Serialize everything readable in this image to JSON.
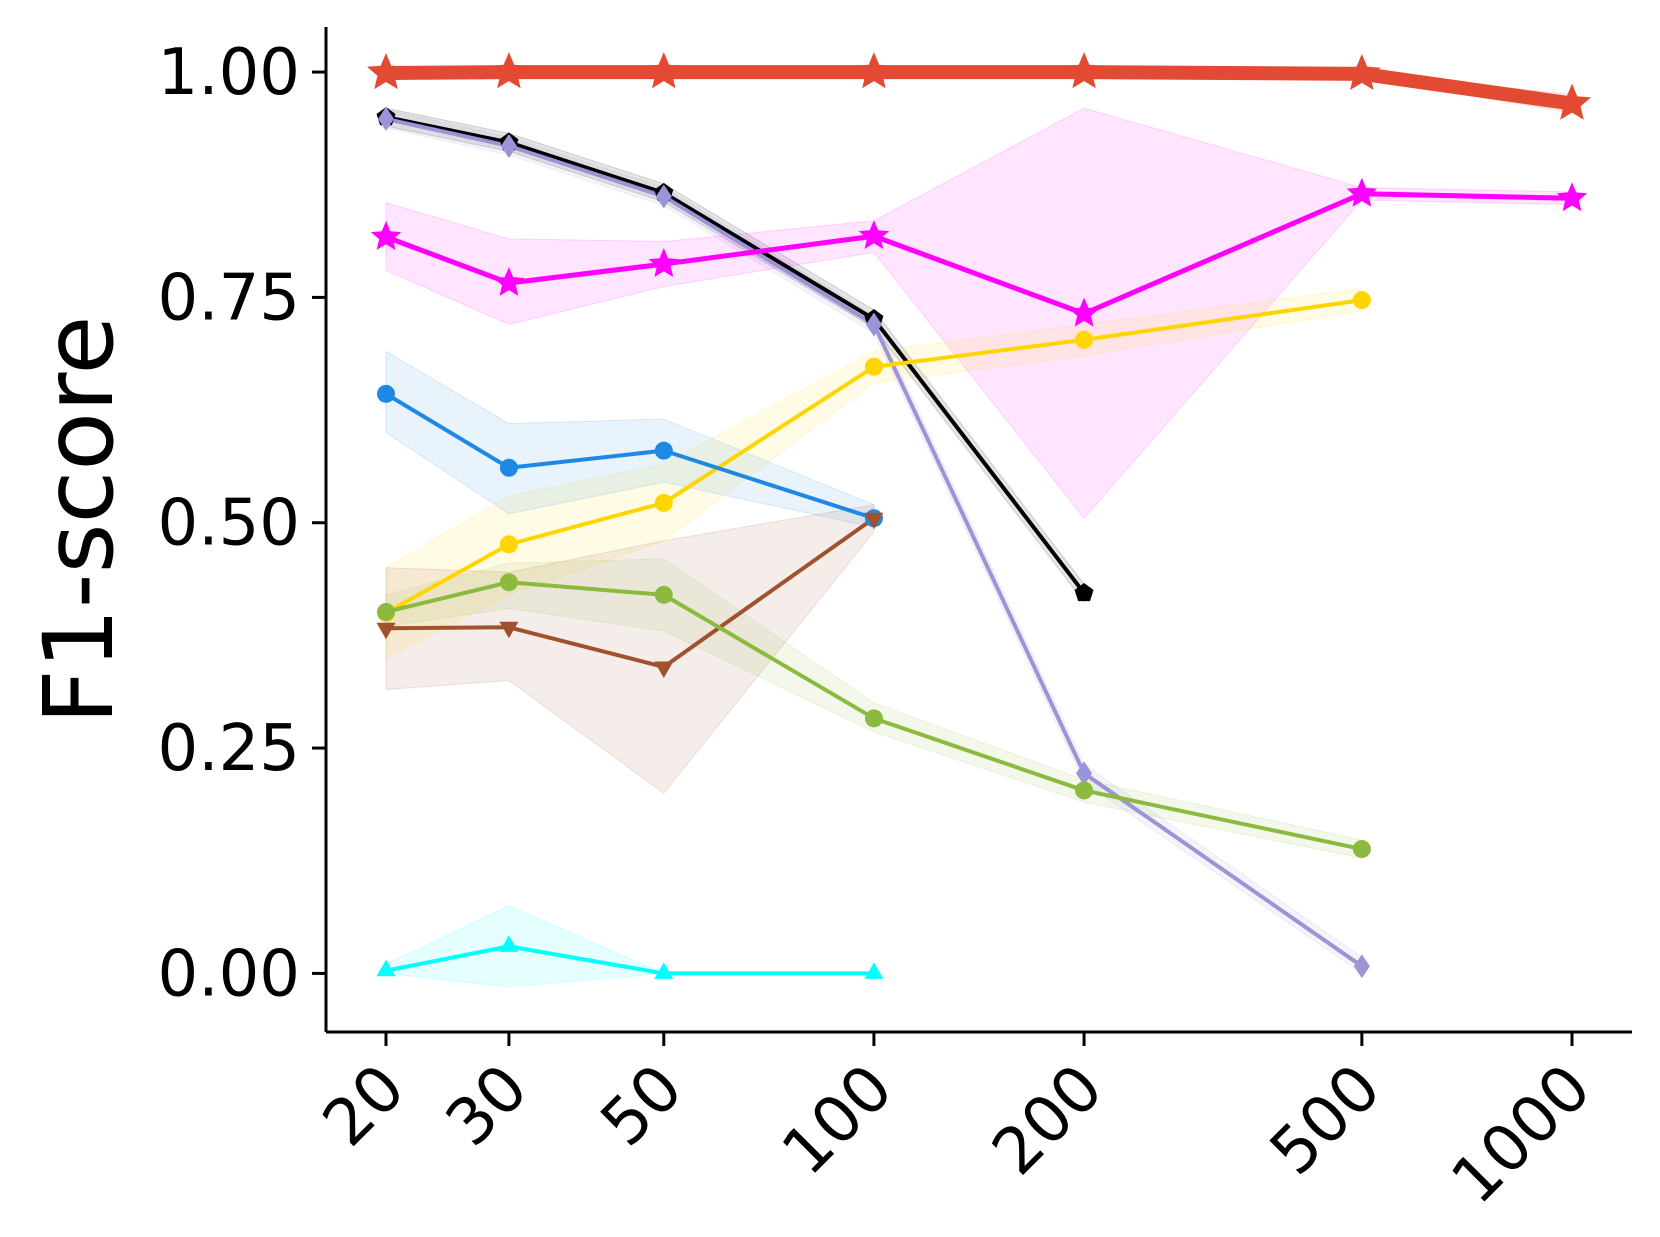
{
  "chart_data": {
    "type": "line",
    "title": "",
    "xlabel": "",
    "ylabel": "F1-score",
    "x_scale": "log",
    "x": [
      20,
      30,
      50,
      100,
      200,
      500,
      1000
    ],
    "xticks": [
      "20",
      "30",
      "50",
      "100",
      "200",
      "500",
      "1000"
    ],
    "yticks": [
      "0.00",
      "0.25",
      "0.50",
      "0.75",
      "1.00"
    ],
    "ylim": [
      -0.065,
      1.05
    ],
    "grid": false,
    "series": [
      {
        "color": "#e34a33",
        "marker": "star",
        "line_width": 14,
        "x": [
          20,
          30,
          50,
          100,
          200,
          500,
          1000
        ],
        "values": [
          0.999,
          1.0,
          1.0,
          1.0,
          1.0,
          0.998,
          0.965
        ],
        "lower": [
          0.996,
          0.997,
          0.997,
          0.997,
          0.997,
          0.994,
          0.955
        ],
        "upper": [
          1.0,
          1.0,
          1.0,
          1.0,
          1.0,
          1.0,
          0.975
        ]
      },
      {
        "color": "#000000",
        "marker": "pentagon",
        "line_width": 4,
        "x": [
          20,
          30,
          50,
          100,
          200
        ],
        "values": [
          0.95,
          0.922,
          0.866,
          0.726,
          0.422
        ],
        "lower": [
          0.94,
          0.912,
          0.856,
          0.716,
          0.412
        ],
        "upper": [
          0.96,
          0.932,
          0.876,
          0.736,
          0.432
        ]
      },
      {
        "color": "#9b94d6",
        "marker": "diamond",
        "line_width": 4,
        "x": [
          20,
          30,
          50,
          100,
          200,
          500
        ],
        "values": [
          0.948,
          0.918,
          0.862,
          0.72,
          0.222,
          0.008
        ],
        "lower": [
          0.938,
          0.908,
          0.852,
          0.71,
          0.212,
          0.0
        ],
        "upper": [
          0.958,
          0.928,
          0.872,
          0.73,
          0.232,
          0.018
        ]
      },
      {
        "color": "#ff00ff",
        "marker": "star",
        "line_width": 5,
        "x": [
          20,
          30,
          50,
          100,
          200,
          500,
          1000
        ],
        "values": [
          0.817,
          0.766,
          0.787,
          0.818,
          0.732,
          0.865,
          0.86
        ],
        "lower": [
          0.78,
          0.72,
          0.762,
          0.8,
          0.505,
          0.858,
          0.853
        ],
        "upper": [
          0.855,
          0.815,
          0.812,
          0.835,
          0.96,
          0.872,
          0.867
        ]
      },
      {
        "color": "#ffd500",
        "marker": "circle",
        "line_width": 4,
        "x": [
          20,
          30,
          50,
          100,
          200,
          500
        ],
        "values": [
          0.4,
          0.476,
          0.522,
          0.673,
          0.703,
          0.747
        ],
        "lower": [
          0.35,
          0.42,
          0.48,
          0.655,
          0.685,
          0.735
        ],
        "upper": [
          0.45,
          0.53,
          0.565,
          0.69,
          0.72,
          0.76
        ]
      },
      {
        "color": "#1e88e5",
        "marker": "circle",
        "line_width": 4,
        "x": [
          20,
          30,
          50,
          100
        ],
        "values": [
          0.643,
          0.561,
          0.58,
          0.505
        ],
        "lower": [
          0.6,
          0.51,
          0.545,
          0.495
        ],
        "upper": [
          0.69,
          0.61,
          0.615,
          0.52
        ]
      },
      {
        "color": "#a0522d",
        "marker": "triangle-down",
        "line_width": 4,
        "x": [
          20,
          30,
          50,
          100
        ],
        "values": [
          0.383,
          0.384,
          0.34,
          0.505
        ],
        "lower": [
          0.315,
          0.325,
          0.2,
          0.49
        ],
        "upper": [
          0.45,
          0.445,
          0.48,
          0.52
        ]
      },
      {
        "color": "#8bba3f",
        "marker": "circle",
        "line_width": 4,
        "x": [
          20,
          30,
          50,
          100,
          200,
          500
        ],
        "values": [
          0.401,
          0.434,
          0.42,
          0.283,
          0.203,
          0.138
        ],
        "lower": [
          0.385,
          0.405,
          0.38,
          0.268,
          0.19,
          0.128
        ],
        "upper": [
          0.42,
          0.455,
          0.46,
          0.3,
          0.215,
          0.148
        ]
      },
      {
        "color": "#00ffff",
        "marker": "triangle-up",
        "line_width": 4,
        "x": [
          20,
          30,
          50,
          100
        ],
        "values": [
          0.003,
          0.03,
          0.0,
          0.0
        ],
        "lower": [
          0.0,
          -0.015,
          0.0,
          0.0
        ],
        "upper": [
          0.01,
          0.075,
          0.0,
          0.0
        ]
      }
    ]
  }
}
